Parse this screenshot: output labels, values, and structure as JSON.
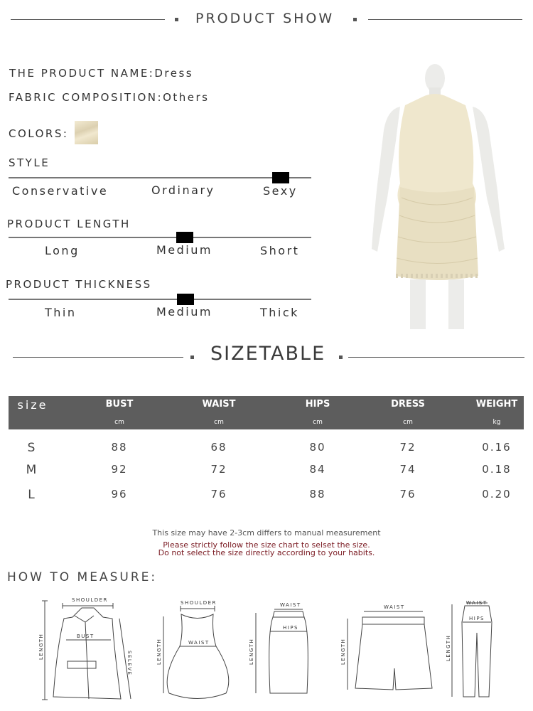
{
  "header": {
    "title": "PRODUCT SHOW"
  },
  "product": {
    "name_label": "THE PRODUCT NAME:",
    "name": "Dress",
    "fabric_label": "FABRIC COMPOSITION:",
    "fabric": "Others",
    "colors_label": "COLORS:",
    "color_swatch": "#efe6cc",
    "style": {
      "label": "STYLE",
      "options": [
        "Conservative",
        "Ordinary",
        "Sexy"
      ],
      "selected": "Sexy"
    },
    "length": {
      "label": "PRODUCT LENGTH",
      "options": [
        "Long",
        "Medium",
        "Short"
      ],
      "selected": "Medium"
    },
    "thickness": {
      "label": "PRODUCT THICKNESS",
      "options": [
        "Thin",
        "Medium",
        "Thick"
      ],
      "selected": "Medium"
    }
  },
  "sizetable": {
    "title": "SIZETABLE",
    "columns": [
      {
        "name": "size",
        "unit": ""
      },
      {
        "name": "BUST",
        "unit": "cm"
      },
      {
        "name": "WAIST",
        "unit": "cm"
      },
      {
        "name": "HIPS",
        "unit": "cm"
      },
      {
        "name": "DRESS",
        "unit": "cm"
      },
      {
        "name": "WEIGHT",
        "unit": "kg"
      }
    ],
    "rows": [
      [
        "S",
        "88",
        "68",
        "80",
        "72",
        "0.16"
      ],
      [
        "M",
        "92",
        "72",
        "84",
        "74",
        "0.18"
      ],
      [
        "L",
        "96",
        "76",
        "88",
        "76",
        "0.20"
      ]
    ]
  },
  "notes": {
    "line1": "This size may have 2-3cm differs to manual measurement",
    "line2": "Please strictly follow the size chart to selset the size.",
    "line3": "Do not select the size directly according to your habits.",
    "warn_color": "#7a1a22"
  },
  "measure": {
    "title": "HOW TO MEASURE:",
    "labels": {
      "shoulder": "SHOULDER",
      "bust": "BUST",
      "length": "LENGTH",
      "sleeve": "SELEVE",
      "waist": "WAIST",
      "hips": "HIPS"
    }
  }
}
